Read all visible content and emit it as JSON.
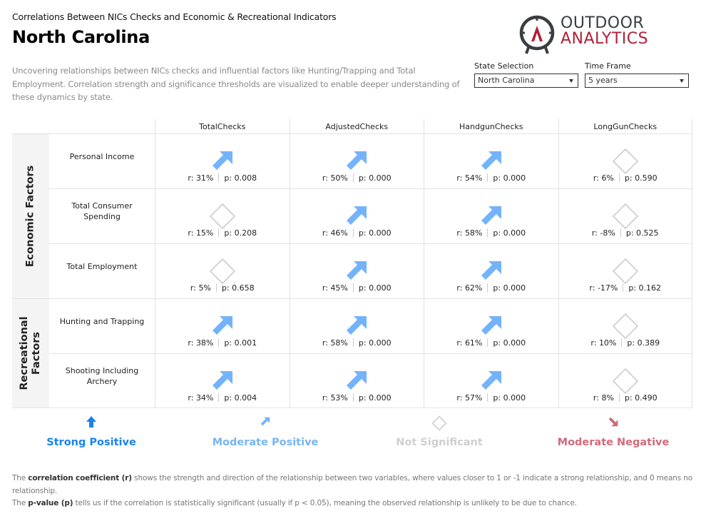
{
  "header": {
    "subtitle": "Correlations Between NICs Checks and Economic & Recreational Indicators",
    "title": "North Carolina",
    "description": "Uncovering relationships between NICs checks and influential factors like Hunting/Trapping and Total Employment. Correlation strength and significance thresholds are visualized to enable deeper understanding of these dynamics by state."
  },
  "logo": {
    "line1": "OUTDOOR",
    "line2": "ANALYTICS",
    "colors": {
      "dark": "#3a3d42",
      "red": "#b0213a"
    }
  },
  "filters": {
    "state": {
      "label": "State Selection",
      "value": "North Carolina"
    },
    "timeframe": {
      "label": "Time Frame",
      "value": "5 years"
    }
  },
  "columns": [
    "TotalChecks",
    "AdjustedChecks",
    "HandgunChecks",
    "LongGunChecks"
  ],
  "groups": [
    {
      "label": "Economic Factors"
    },
    {
      "label": "Recreational Factors"
    }
  ],
  "rows": [
    {
      "label": "Personal Income",
      "cells": [
        {
          "type": "moderate-positive",
          "r": "r: 31%",
          "p": "p: 0.008"
        },
        {
          "type": "moderate-positive",
          "r": "r: 50%",
          "p": "p: 0.000"
        },
        {
          "type": "moderate-positive",
          "r": "r: 54%",
          "p": "p: 0.000"
        },
        {
          "type": "not-significant",
          "r": "r: 6%",
          "p": "p: 0.590"
        }
      ]
    },
    {
      "label": "Total Consumer Spending",
      "cells": [
        {
          "type": "not-significant",
          "r": "r: 15%",
          "p": "p: 0.208"
        },
        {
          "type": "moderate-positive",
          "r": "r: 46%",
          "p": "p: 0.000"
        },
        {
          "type": "moderate-positive",
          "r": "r: 58%",
          "p": "p: 0.000"
        },
        {
          "type": "not-significant",
          "r": "r: -8%",
          "p": "p: 0.525"
        }
      ]
    },
    {
      "label": "Total Employment",
      "cells": [
        {
          "type": "not-significant",
          "r": "r: 5%",
          "p": "p: 0.658"
        },
        {
          "type": "moderate-positive",
          "r": "r: 45%",
          "p": "p: 0.000"
        },
        {
          "type": "moderate-positive",
          "r": "r: 62%",
          "p": "p: 0.000"
        },
        {
          "type": "not-significant",
          "r": "r: -17%",
          "p": "p: 0.162"
        }
      ]
    },
    {
      "label": "Hunting and Trapping",
      "cells": [
        {
          "type": "moderate-positive",
          "r": "r: 38%",
          "p": "p: 0.001"
        },
        {
          "type": "moderate-positive",
          "r": "r: 58%",
          "p": "p: 0.000"
        },
        {
          "type": "moderate-positive",
          "r": "r: 61%",
          "p": "p: 0.000"
        },
        {
          "type": "not-significant",
          "r": "r: 10%",
          "p": "p: 0.389"
        }
      ]
    },
    {
      "label": "Shooting Including Archery",
      "cells": [
        {
          "type": "moderate-positive",
          "r": "r: 34%",
          "p": "p: 0.004"
        },
        {
          "type": "moderate-positive",
          "r": "r: 53%",
          "p": "p: 0.000"
        },
        {
          "type": "moderate-positive",
          "r": "r: 57%",
          "p": "p: 0.000"
        },
        {
          "type": "not-significant",
          "r": "r: 8%",
          "p": "p: 0.490"
        }
      ]
    }
  ],
  "legend": [
    {
      "label": "Strong Positive",
      "icon": "arrow-up-icon",
      "color": "#1a82f0"
    },
    {
      "label": "Moderate Positive",
      "icon": "arrow-up-right-icon",
      "color": "#79b4f5"
    },
    {
      "label": "Not Significant",
      "icon": "diamond-icon",
      "color": "#cfcfcf"
    },
    {
      "label": "Moderate Negative",
      "icon": "arrow-down-right-icon",
      "color": "#cf6b7b"
    }
  ],
  "notes": {
    "line1_prefix": "The ",
    "line1_bold": "correlation coefficient (r)",
    "line1_rest": " shows the strength and direction of the relationship between two variables, where values closer to 1 or -1 indicate a strong relationship, and 0 means no relationship.",
    "line2_prefix": "The ",
    "line2_bold": "p-value (p)",
    "line2_rest": " tells us if the correlation is statistically significant (usually if p < 0.05), meaning the observed relationship is unlikely to be due to chance."
  }
}
